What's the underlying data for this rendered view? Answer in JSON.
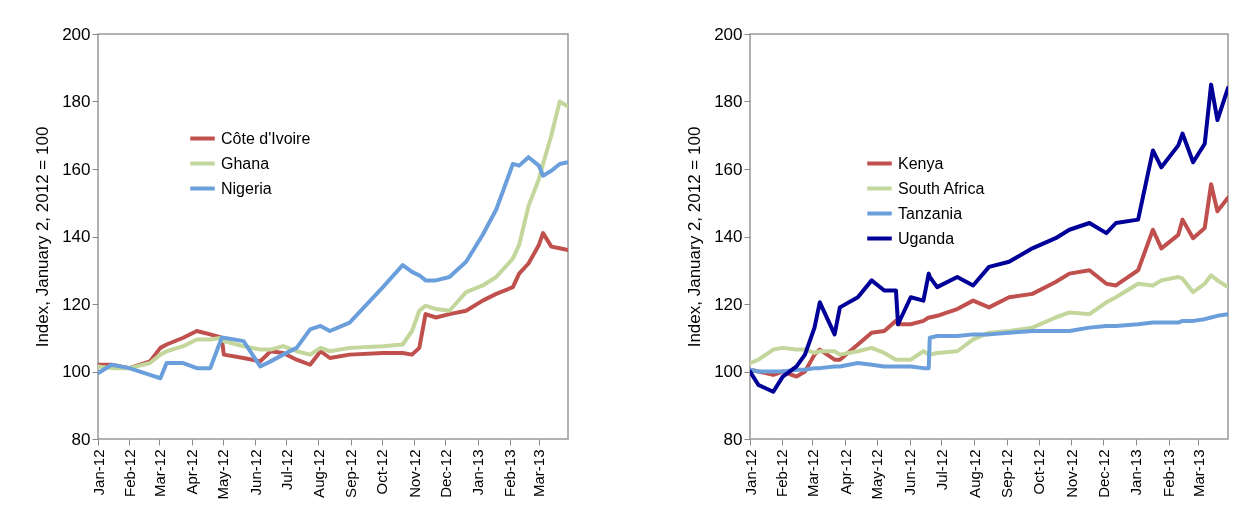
{
  "chart_data": [
    {
      "type": "line",
      "ylabel": "Index, January 2, 2012 = 100",
      "legend": "top left",
      "grid": false,
      "xlim": [
        "2012-01-02",
        "2013-03-29"
      ],
      "ylim": [
        80,
        200
      ],
      "yticks": [
        80,
        100,
        120,
        140,
        160,
        180,
        200
      ],
      "xticks": [
        {
          "value": "2012-01-02",
          "label": "Jan-12"
        },
        {
          "value": "2012-02-01",
          "label": "Feb-12"
        },
        {
          "value": "2012-03-01",
          "label": "Mar-12"
        },
        {
          "value": "2012-04-01",
          "label": "Apr-12"
        },
        {
          "value": "2012-05-01",
          "label": "May-12"
        },
        {
          "value": "2012-06-01",
          "label": "Jun-12"
        },
        {
          "value": "2012-07-01",
          "label": "Jul-12"
        },
        {
          "value": "2012-08-01",
          "label": "Aug-12"
        },
        {
          "value": "2012-09-01",
          "label": "Sep-12"
        },
        {
          "value": "2012-10-01",
          "label": "Oct-12"
        },
        {
          "value": "2012-11-01",
          "label": "Nov-12"
        },
        {
          "value": "2012-12-01",
          "label": "Dec-12"
        },
        {
          "value": "2013-01-01",
          "label": "Jan-13"
        },
        {
          "value": "2013-02-01",
          "label": "Feb-13"
        },
        {
          "value": "2013-03-01",
          "label": "Mar-13"
        }
      ],
      "x": [
        "2012-01-02",
        "2012-01-15",
        "2012-02-01",
        "2012-02-21",
        "2012-03-02",
        "2012-03-08",
        "2012-03-24",
        "2012-04-06",
        "2012-04-19",
        "2012-04-30",
        "2012-05-02",
        "2012-05-21",
        "2012-06-06",
        "2012-06-16",
        "2012-06-28",
        "2012-07-11",
        "2012-07-24",
        "2012-08-03",
        "2012-08-12",
        "2012-08-31",
        "2012-10-02",
        "2012-10-21",
        "2012-10-30",
        "2012-11-06",
        "2012-11-12",
        "2012-11-22",
        "2012-12-05",
        "2012-12-21",
        "2013-01-06",
        "2013-01-19",
        "2013-02-04",
        "2013-02-10",
        "2013-02-19",
        "2013-03-01",
        "2013-03-05",
        "2013-03-13",
        "2013-03-21",
        "2013-03-29"
      ],
      "series": [
        {
          "name": "Côte d'Ivoire",
          "color": "#c0504d",
          "values": [
            102,
            102,
            101,
            103,
            107,
            108,
            110,
            112,
            111,
            110,
            105,
            104,
            103,
            106,
            105.5,
            103.5,
            102,
            106,
            104,
            105,
            105.5,
            105.5,
            105,
            107,
            117,
            116,
            117,
            118,
            121,
            123,
            125,
            129,
            132,
            137.5,
            141,
            137,
            136.5,
            136
          ]
        },
        {
          "name": "Ghana",
          "color": "#c3d69b",
          "values": [
            101.5,
            101,
            101,
            102.5,
            105,
            106,
            107.5,
            109.5,
            109.5,
            110,
            109,
            107.5,
            106.5,
            106.5,
            107.5,
            106,
            105,
            107,
            106,
            107,
            107.5,
            108,
            112,
            118,
            119.5,
            118.5,
            118,
            123.5,
            125.5,
            128,
            133.5,
            137.5,
            149,
            157,
            161.5,
            170,
            180,
            178.5
          ]
        },
        {
          "name": "Nigeria",
          "color": "#6a9fdc",
          "values": [
            99.5,
            102,
            101,
            99,
            98,
            102.5,
            102.5,
            101,
            101,
            110,
            110,
            109,
            101.5,
            103,
            105,
            107,
            112.5,
            113.5,
            112,
            114.5,
            125,
            131.5,
            129.5,
            128.5,
            127,
            127,
            128,
            132.5,
            140.5,
            148,
            161.5,
            161,
            163.5,
            161,
            158,
            159.5,
            161.5,
            162
          ]
        }
      ]
    },
    {
      "type": "line",
      "ylabel": "Index, January 2, 2012 = 100",
      "legend": "top left",
      "grid": false,
      "xlim": [
        "2012-01-02",
        "2013-03-29"
      ],
      "ylim": [
        80,
        200
      ],
      "yticks": [
        80,
        100,
        120,
        140,
        160,
        180,
        200
      ],
      "xticks": [
        {
          "value": "2012-01-02",
          "label": "Jan-12"
        },
        {
          "value": "2012-02-01",
          "label": "Feb-12"
        },
        {
          "value": "2012-03-01",
          "label": "Mar-12"
        },
        {
          "value": "2012-04-01",
          "label": "Apr-12"
        },
        {
          "value": "2012-05-01",
          "label": "May-12"
        },
        {
          "value": "2012-06-01",
          "label": "Jun-12"
        },
        {
          "value": "2012-07-01",
          "label": "Jul-12"
        },
        {
          "value": "2012-08-01",
          "label": "Aug-12"
        },
        {
          "value": "2012-09-01",
          "label": "Sep-12"
        },
        {
          "value": "2012-10-01",
          "label": "Oct-12"
        },
        {
          "value": "2012-11-01",
          "label": "Nov-12"
        },
        {
          "value": "2012-12-01",
          "label": "Dec-12"
        },
        {
          "value": "2013-01-01",
          "label": "Jan-13"
        },
        {
          "value": "2013-02-01",
          "label": "Feb-13"
        },
        {
          "value": "2013-03-01",
          "label": "Mar-13"
        }
      ],
      "x": [
        "2012-01-02",
        "2012-01-10",
        "2012-01-24",
        "2012-02-02",
        "2012-02-15",
        "2012-02-23",
        "2012-03-03",
        "2012-03-08",
        "2012-03-22",
        "2012-03-27",
        "2012-04-13",
        "2012-04-26",
        "2012-05-08",
        "2012-05-19",
        "2012-05-21",
        "2012-06-02",
        "2012-06-14",
        "2012-06-19",
        "2012-06-20",
        "2012-06-27",
        "2012-07-16",
        "2012-07-31",
        "2012-08-15",
        "2012-09-03",
        "2012-09-25",
        "2012-10-17",
        "2012-10-30",
        "2012-11-18",
        "2012-12-04",
        "2012-12-13",
        "2013-01-03",
        "2013-01-17",
        "2013-01-25",
        "2013-02-10",
        "2013-02-14",
        "2013-02-24",
        "2013-03-07",
        "2013-03-13",
        "2013-03-19",
        "2013-03-29"
      ],
      "series": [
        {
          "name": "Kenya",
          "color": "#c0504d",
          "values": [
            100.5,
            100,
            99,
            100,
            98.5,
            100,
            105,
            106.5,
            103.5,
            103.5,
            108,
            111.5,
            112,
            115,
            114,
            114,
            115,
            116,
            116,
            116.5,
            118.5,
            121,
            119,
            122,
            123,
            126.5,
            129,
            130,
            126,
            125.5,
            130,
            142,
            136.5,
            140.5,
            145,
            139.5,
            142.5,
            155.5,
            147.5,
            151.5
          ]
        },
        {
          "name": "South Africa",
          "color": "#c3d69b",
          "values": [
            102.5,
            103.5,
            106.5,
            107,
            106.5,
            106.5,
            105.5,
            106,
            106,
            105,
            106,
            107,
            105.5,
            103.5,
            103.5,
            103.5,
            106,
            105,
            105,
            105.5,
            106,
            109.5,
            111.5,
            112,
            113,
            116,
            117.5,
            117,
            120.5,
            122,
            126,
            125.5,
            127,
            128,
            127.5,
            123.5,
            126,
            128.5,
            127,
            125
          ]
        },
        {
          "name": "Tanzania",
          "color": "#6a9fdc",
          "values": [
            100.5,
            100,
            100,
            100,
            100.5,
            100.5,
            101,
            101,
            101.5,
            101.5,
            102.5,
            102,
            101.5,
            101.5,
            101.5,
            101.5,
            101,
            101,
            110,
            110.5,
            110.5,
            111,
            111,
            111.5,
            112,
            112,
            112,
            113,
            113.5,
            113.5,
            114,
            114.5,
            114.5,
            114.5,
            115,
            115,
            115.5,
            116,
            116.5,
            117
          ]
        },
        {
          "name": "Uganda",
          "color": "#000099",
          "values": [
            100,
            96,
            94,
            98.5,
            101.5,
            105,
            113,
            120.5,
            111,
            119,
            122,
            127,
            124,
            124,
            114,
            122,
            121,
            129,
            128,
            125,
            128,
            125.5,
            131,
            132.5,
            136.5,
            139.5,
            142,
            144,
            141,
            144,
            145,
            165.5,
            160.5,
            167,
            170.5,
            162,
            167.5,
            185,
            174.5,
            184
          ]
        }
      ]
    }
  ]
}
